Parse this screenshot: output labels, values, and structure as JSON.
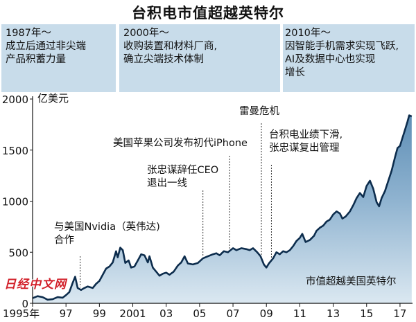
{
  "title": "台积电市值超越英特尔",
  "eras": [
    {
      "heading": "1987年～",
      "lines": [
        "成立后通过非尖端",
        "产品积蓄力量"
      ]
    },
    {
      "heading": "2000年～",
      "lines": [
        "收购装置和材料厂商,",
        "确立尖端技术体制"
      ]
    },
    {
      "heading": "2010年～",
      "lines": [
        "因智能手机需求实现飞跃,",
        "AI及数据中心也实现",
        "增长"
      ]
    }
  ],
  "watermark": "日经中文网",
  "chart_data": {
    "type": "area",
    "title": "台积电市值超越英特尔",
    "ylabel": "亿美元",
    "ylim": [
      0,
      2000
    ],
    "yticks": [
      0,
      500,
      1000,
      1500,
      2000
    ],
    "xlim": [
      1995.0,
      2017.75
    ],
    "xticks": [
      {
        "value": 1995,
        "label": "1995年"
      },
      {
        "value": 1997,
        "label": "97"
      },
      {
        "value": 1999,
        "label": "99"
      },
      {
        "value": 2001,
        "label": "2001"
      },
      {
        "value": 2003,
        "label": "03"
      },
      {
        "value": 2005,
        "label": "05"
      },
      {
        "value": 2007,
        "label": "07"
      },
      {
        "value": 2009,
        "label": "09"
      },
      {
        "value": 2011,
        "label": "11"
      },
      {
        "value": 2013,
        "label": "13"
      },
      {
        "value": 2015,
        "label": "15"
      },
      {
        "value": 2017,
        "label": "17"
      }
    ],
    "grid": false,
    "series": [
      {
        "name": "",
        "points": [
          [
            1995.0,
            50
          ],
          [
            1995.3,
            70
          ],
          [
            1995.6,
            60
          ],
          [
            1995.9,
            35
          ],
          [
            1996.2,
            40
          ],
          [
            1996.5,
            60
          ],
          [
            1996.8,
            55
          ],
          [
            1997.0,
            80
          ],
          [
            1997.2,
            110
          ],
          [
            1997.4,
            200
          ],
          [
            1997.55,
            260
          ],
          [
            1997.7,
            150
          ],
          [
            1997.9,
            130
          ],
          [
            1998.1,
            150
          ],
          [
            1998.3,
            165
          ],
          [
            1998.6,
            150
          ],
          [
            1998.8,
            190
          ],
          [
            1999.0,
            220
          ],
          [
            1999.2,
            280
          ],
          [
            1999.4,
            340
          ],
          [
            1999.6,
            360
          ],
          [
            1999.8,
            400
          ],
          [
            2000.0,
            510
          ],
          [
            2000.1,
            450
          ],
          [
            2000.25,
            545
          ],
          [
            2000.4,
            520
          ],
          [
            2000.55,
            395
          ],
          [
            2000.75,
            420
          ],
          [
            2000.9,
            350
          ],
          [
            2001.1,
            360
          ],
          [
            2001.3,
            420
          ],
          [
            2001.5,
            480
          ],
          [
            2001.7,
            470
          ],
          [
            2001.9,
            400
          ],
          [
            2002.0,
            460
          ],
          [
            2002.2,
            350
          ],
          [
            2002.4,
            310
          ],
          [
            2002.6,
            270
          ],
          [
            2002.8,
            290
          ],
          [
            2003.0,
            300
          ],
          [
            2003.2,
            280
          ],
          [
            2003.45,
            310
          ],
          [
            2003.7,
            370
          ],
          [
            2003.9,
            400
          ],
          [
            2004.1,
            460
          ],
          [
            2004.3,
            390
          ],
          [
            2004.6,
            380
          ],
          [
            2004.9,
            395
          ],
          [
            2005.2,
            440
          ],
          [
            2005.5,
            460
          ],
          [
            2005.8,
            480
          ],
          [
            2006.0,
            490
          ],
          [
            2006.2,
            470
          ],
          [
            2006.45,
            510
          ],
          [
            2006.7,
            500
          ],
          [
            2007.0,
            540
          ],
          [
            2007.2,
            520
          ],
          [
            2007.5,
            540
          ],
          [
            2007.8,
            530
          ],
          [
            2008.0,
            520
          ],
          [
            2008.2,
            540
          ],
          [
            2008.45,
            500
          ],
          [
            2008.65,
            460
          ],
          [
            2008.85,
            380
          ],
          [
            2009.0,
            350
          ],
          [
            2009.15,
            390
          ],
          [
            2009.4,
            440
          ],
          [
            2009.6,
            500
          ],
          [
            2009.8,
            480
          ],
          [
            2010.0,
            510
          ],
          [
            2010.2,
            500
          ],
          [
            2010.4,
            520
          ],
          [
            2010.6,
            560
          ],
          [
            2010.8,
            610
          ],
          [
            2011.0,
            640
          ],
          [
            2011.15,
            680
          ],
          [
            2011.35,
            600
          ],
          [
            2011.6,
            620
          ],
          [
            2011.85,
            660
          ],
          [
            2012.0,
            710
          ],
          [
            2012.2,
            740
          ],
          [
            2012.4,
            760
          ],
          [
            2012.6,
            800
          ],
          [
            2012.8,
            820
          ],
          [
            2013.0,
            870
          ],
          [
            2013.2,
            900
          ],
          [
            2013.4,
            880
          ],
          [
            2013.55,
            830
          ],
          [
            2013.75,
            850
          ],
          [
            2014.0,
            900
          ],
          [
            2014.2,
            960
          ],
          [
            2014.4,
            1030
          ],
          [
            2014.6,
            1080
          ],
          [
            2014.8,
            1040
          ],
          [
            2015.0,
            1150
          ],
          [
            2015.2,
            1200
          ],
          [
            2015.4,
            1120
          ],
          [
            2015.6,
            990
          ],
          [
            2015.75,
            950
          ],
          [
            2015.9,
            1030
          ],
          [
            2016.1,
            1100
          ],
          [
            2016.3,
            1200
          ],
          [
            2016.5,
            1300
          ],
          [
            2016.7,
            1430
          ],
          [
            2016.85,
            1520
          ],
          [
            2017.0,
            1540
          ],
          [
            2017.15,
            1620
          ],
          [
            2017.3,
            1700
          ],
          [
            2017.45,
            1780
          ],
          [
            2017.55,
            1840
          ],
          [
            2017.7,
            1830
          ]
        ]
      }
    ],
    "annotations": [
      {
        "x": 1997.85,
        "lines": [
          "与美国Nvidia（英伟达)",
          "合作"
        ]
      },
      {
        "x": 2005.2,
        "lines": [
          "张忠谋辞任CEO",
          "退出一线"
        ]
      },
      {
        "x": 2006.8,
        "lines": [
          "美国苹果公司发布初代iPhone"
        ]
      },
      {
        "x": 2008.7,
        "lines": [
          "雷曼危机"
        ]
      },
      {
        "x": 2009.3,
        "lines": [
          "台积电业绩下滑,",
          "张忠谋复出管理"
        ]
      },
      {
        "x": 2017.2,
        "lines": [
          "市值超越美国英特尔"
        ]
      }
    ]
  }
}
